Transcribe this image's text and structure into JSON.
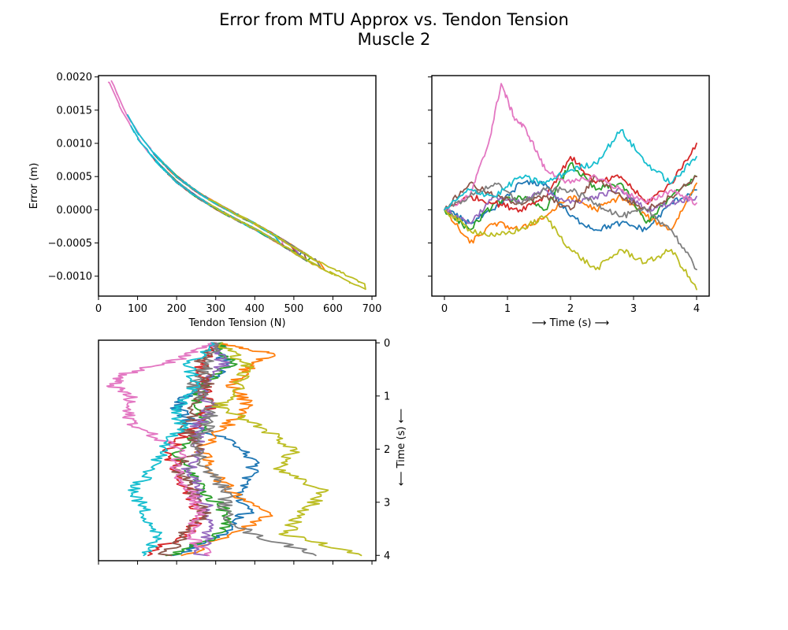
{
  "figure": {
    "title_line1": "Error from MTU Approx vs. Tendon Tension",
    "title_line2": "Muscle 2"
  },
  "palette": [
    "#1f77b4",
    "#ff7f0e",
    "#2ca02c",
    "#d62728",
    "#9467bd",
    "#8c564b",
    "#e377c2",
    "#7f7f7f",
    "#bcbd22",
    "#17becf"
  ],
  "chart_data": [
    {
      "id": "error-vs-tension",
      "type": "scatter",
      "title": "",
      "xlabel": "Tendon Tension (N)",
      "ylabel": "Error (m)",
      "xlim": [
        0,
        710
      ],
      "ylim": [
        -0.0013,
        0.00202
      ],
      "xticks": [
        0,
        100,
        200,
        300,
        400,
        500,
        600,
        700
      ],
      "xtick_labels": [
        "0",
        "100",
        "200",
        "300",
        "400",
        "500",
        "600",
        "700"
      ],
      "yticks": [
        -0.001,
        -0.0005,
        0.0,
        0.0005,
        0.001,
        0.0015,
        0.002
      ],
      "ytick_labels": [
        "−0.0010",
        "−0.0005",
        "0.0000",
        "0.0005",
        "0.0010",
        "0.0015",
        "0.0020"
      ],
      "grid": false,
      "series": [
        {
          "color_index": 6,
          "tension_range": [
            30,
            470
          ]
        },
        {
          "color_index": 5,
          "tension_range": [
            160,
            530
          ]
        },
        {
          "color_index": 3,
          "tension_range": [
            140,
            500
          ]
        },
        {
          "color_index": 4,
          "tension_range": [
            150,
            510
          ]
        },
        {
          "color_index": 0,
          "tension_range": [
            140,
            520
          ]
        },
        {
          "color_index": 1,
          "tension_range": [
            160,
            580
          ]
        },
        {
          "color_index": 2,
          "tension_range": [
            150,
            540
          ]
        },
        {
          "color_index": 7,
          "tension_range": [
            180,
            560
          ]
        },
        {
          "color_index": 9,
          "tension_range": [
            80,
            460
          ]
        },
        {
          "color_index": 8,
          "tension_range": [
            290,
            680
          ]
        }
      ],
      "curve_points": [
        [
          30,
          0.00195
        ],
        [
          60,
          0.00152
        ],
        [
          100,
          0.00112
        ],
        [
          150,
          0.00075
        ],
        [
          200,
          0.00046
        ],
        [
          250,
          0.00024
        ],
        [
          300,
          6e-05
        ],
        [
          350,
          -0.0001
        ],
        [
          400,
          -0.00025
        ],
        [
          450,
          -0.00042
        ],
        [
          500,
          -0.0006
        ],
        [
          550,
          -0.00078
        ],
        [
          600,
          -0.00092
        ],
        [
          680,
          -0.00116
        ]
      ]
    },
    {
      "id": "error-vs-time",
      "type": "line",
      "title": "",
      "xlabel": "⟶ Time (s) ⟶",
      "ylabel": "",
      "xlim": [
        -0.2,
        4.2
      ],
      "ylim": [
        -0.0013,
        0.00202
      ],
      "xticks": [
        0,
        1,
        2,
        3,
        4
      ],
      "xtick_labels": [
        "0",
        "1",
        "2",
        "3",
        "4"
      ],
      "yticks": [
        -0.001,
        -0.0005,
        0.0,
        0.0005,
        0.001,
        0.0015,
        0.002
      ],
      "grid": false,
      "series": [
        {
          "color_index": 0,
          "x": [
            0,
            0.4,
            0.8,
            1.2,
            1.6,
            2.0,
            2.4,
            2.8,
            3.2,
            3.6,
            4.0
          ],
          "y": [
            0,
            -0.0002,
            0.0,
            0.0004,
            0.0004,
            -0.0001,
            -0.0003,
            -0.0002,
            -0.0003,
            0.0001,
            0.0003
          ]
        },
        {
          "color_index": 1,
          "x": [
            0,
            0.4,
            0.8,
            1.2,
            1.6,
            2.0,
            2.4,
            2.8,
            3.2,
            3.6,
            4.0
          ],
          "y": [
            0,
            -0.0005,
            -0.0002,
            -0.0003,
            -0.0001,
            0.0002,
            0.0,
            0.0002,
            -0.0001,
            -0.0003,
            0.0004
          ]
        },
        {
          "color_index": 2,
          "x": [
            0,
            0.4,
            0.8,
            1.2,
            1.6,
            2.0,
            2.4,
            2.8,
            3.2,
            3.6,
            4.0
          ],
          "y": [
            0,
            -0.0003,
            0.0001,
            0.0002,
            0.0,
            0.0007,
            0.0003,
            0.0004,
            -0.0002,
            0.0002,
            0.0005
          ]
        },
        {
          "color_index": 3,
          "x": [
            0,
            0.4,
            0.8,
            1.2,
            1.6,
            2.0,
            2.4,
            2.8,
            3.2,
            3.6,
            4.0
          ],
          "y": [
            0,
            0.0002,
            0.0001,
            0.0,
            0.0002,
            0.0008,
            0.0004,
            0.0005,
            0.0001,
            0.0004,
            0.001
          ]
        },
        {
          "color_index": 4,
          "x": [
            0,
            0.4,
            0.8,
            1.2,
            1.6,
            2.0,
            2.4,
            2.8,
            3.2,
            3.6,
            4.0
          ],
          "y": [
            0,
            -0.0002,
            0.0002,
            0.0001,
            0.0003,
            0.0001,
            0.0002,
            0.0003,
            0.0,
            0.0001,
            0.0002
          ]
        },
        {
          "color_index": 5,
          "x": [
            0,
            0.4,
            0.8,
            1.2,
            1.6,
            2.0,
            2.4,
            2.8,
            3.2,
            3.6,
            4.0
          ],
          "y": [
            0,
            0.0004,
            0.0002,
            0.0001,
            0.0002,
            0.0,
            0.0005,
            0.0002,
            0.0,
            0.0002,
            0.0005
          ]
        },
        {
          "color_index": 6,
          "x": [
            0,
            0.4,
            0.7,
            0.9,
            1.1,
            1.3,
            1.6,
            2.0,
            2.4,
            2.8,
            3.2,
            3.6,
            4.0
          ],
          "y": [
            0,
            0.0002,
            0.001,
            0.0019,
            0.0014,
            0.0012,
            0.0006,
            0.0004,
            0.0005,
            0.0003,
            0.0001,
            0.0003,
            0.0001
          ]
        },
        {
          "color_index": 7,
          "x": [
            0,
            0.4,
            0.8,
            1.2,
            1.6,
            2.0,
            2.4,
            2.8,
            3.2,
            3.6,
            4.0
          ],
          "y": [
            0,
            0.0002,
            0.0004,
            0.0001,
            0.0003,
            0.0003,
            0.0001,
            -0.0001,
            0.0,
            -0.0003,
            -0.0009
          ]
        },
        {
          "color_index": 8,
          "x": [
            0,
            0.4,
            0.8,
            1.2,
            1.6,
            2.0,
            2.4,
            2.8,
            3.2,
            3.6,
            4.0
          ],
          "y": [
            0,
            -0.0003,
            -0.0004,
            -0.0003,
            -0.0001,
            -0.0006,
            -0.0009,
            -0.0006,
            -0.0008,
            -0.0006,
            -0.0012
          ]
        },
        {
          "color_index": 9,
          "x": [
            0,
            0.4,
            0.8,
            1.2,
            1.6,
            2.0,
            2.4,
            2.8,
            3.2,
            3.6,
            4.0
          ],
          "y": [
            0,
            0.0003,
            0.0002,
            0.0005,
            0.0004,
            0.0006,
            0.0007,
            0.0012,
            0.0007,
            0.0004,
            0.0008
          ]
        }
      ]
    },
    {
      "id": "tension-vs-time",
      "type": "line",
      "title": "",
      "xlabel": "",
      "ylabel": "⟵ Time (s) ⟵",
      "xlim": [
        0,
        710
      ],
      "ylim": [
        4.1,
        -0.05
      ],
      "xticks": [
        0,
        100,
        200,
        300,
        400,
        500,
        600,
        700
      ],
      "yticks": [
        0,
        1,
        2,
        3,
        4
      ],
      "ytick_labels": [
        "0",
        "1",
        "2",
        "3",
        "4"
      ],
      "grid": false,
      "series": [
        {
          "color_index": 0,
          "t": [
            0,
            0.4,
            0.8,
            1.2,
            1.6,
            2.0,
            2.4,
            2.8,
            3.2,
            3.6,
            4.0
          ],
          "x": [
            300,
            330,
            260,
            200,
            250,
            380,
            400,
            360,
            380,
            310,
            210
          ]
        },
        {
          "color_index": 1,
          "t": [
            0,
            0.2,
            0.5,
            0.8,
            1.2,
            1.6,
            2.0,
            2.4,
            2.8,
            3.2,
            3.6,
            4.0
          ],
          "x": [
            300,
            440,
            380,
            340,
            390,
            320,
            260,
            290,
            340,
            440,
            350,
            220
          ]
        },
        {
          "color_index": 2,
          "t": [
            0,
            0.4,
            0.8,
            1.2,
            1.6,
            2.0,
            2.4,
            2.8,
            3.2,
            3.6,
            4.0
          ],
          "x": [
            300,
            340,
            270,
            250,
            270,
            200,
            230,
            270,
            330,
            310,
            190
          ]
        },
        {
          "color_index": 3,
          "t": [
            0,
            0.4,
            0.8,
            1.2,
            1.6,
            2.0,
            2.4,
            2.8,
            3.2,
            3.6,
            4.0
          ],
          "x": [
            300,
            260,
            270,
            290,
            240,
            180,
            200,
            230,
            260,
            230,
            110
          ]
        },
        {
          "color_index": 4,
          "t": [
            0,
            0.4,
            0.8,
            1.2,
            1.6,
            2.0,
            2.4,
            2.8,
            3.2,
            3.6,
            4.0
          ],
          "x": [
            300,
            320,
            260,
            290,
            250,
            260,
            230,
            260,
            280,
            280,
            260
          ]
        },
        {
          "color_index": 5,
          "t": [
            0,
            0.4,
            0.8,
            1.2,
            1.6,
            2.0,
            2.4,
            2.8,
            3.2,
            3.6,
            4.0
          ],
          "x": [
            300,
            260,
            280,
            250,
            220,
            260,
            200,
            240,
            270,
            220,
            170
          ]
        },
        {
          "color_index": 6,
          "t": [
            0,
            0.3,
            0.6,
            0.8,
            1.0,
            1.3,
            1.6,
            2.0,
            2.4,
            2.8,
            3.2,
            3.6,
            4.0
          ],
          "x": [
            300,
            210,
            60,
            35,
            80,
            70,
            100,
            210,
            200,
            240,
            260,
            230,
            280
          ]
        },
        {
          "color_index": 7,
          "t": [
            0,
            0.4,
            0.8,
            1.2,
            1.6,
            2.0,
            2.4,
            2.8,
            3.2,
            3.6,
            4.0
          ],
          "x": [
            300,
            280,
            240,
            290,
            280,
            250,
            280,
            330,
            320,
            390,
            570
          ]
        },
        {
          "color_index": 8,
          "t": [
            0,
            0.4,
            0.8,
            1.2,
            1.6,
            2.0,
            2.4,
            2.8,
            3.2,
            3.6,
            4.0
          ],
          "x": [
            300,
            380,
            360,
            310,
            420,
            500,
            460,
            580,
            520,
            480,
            680
          ]
        },
        {
          "color_index": 9,
          "t": [
            0,
            0.4,
            0.8,
            1.2,
            1.6,
            2.0,
            2.4,
            2.8,
            3.2,
            3.6,
            4.0
          ],
          "x": [
            300,
            230,
            250,
            200,
            210,
            170,
            130,
            90,
            120,
            150,
            120
          ]
        }
      ]
    }
  ]
}
